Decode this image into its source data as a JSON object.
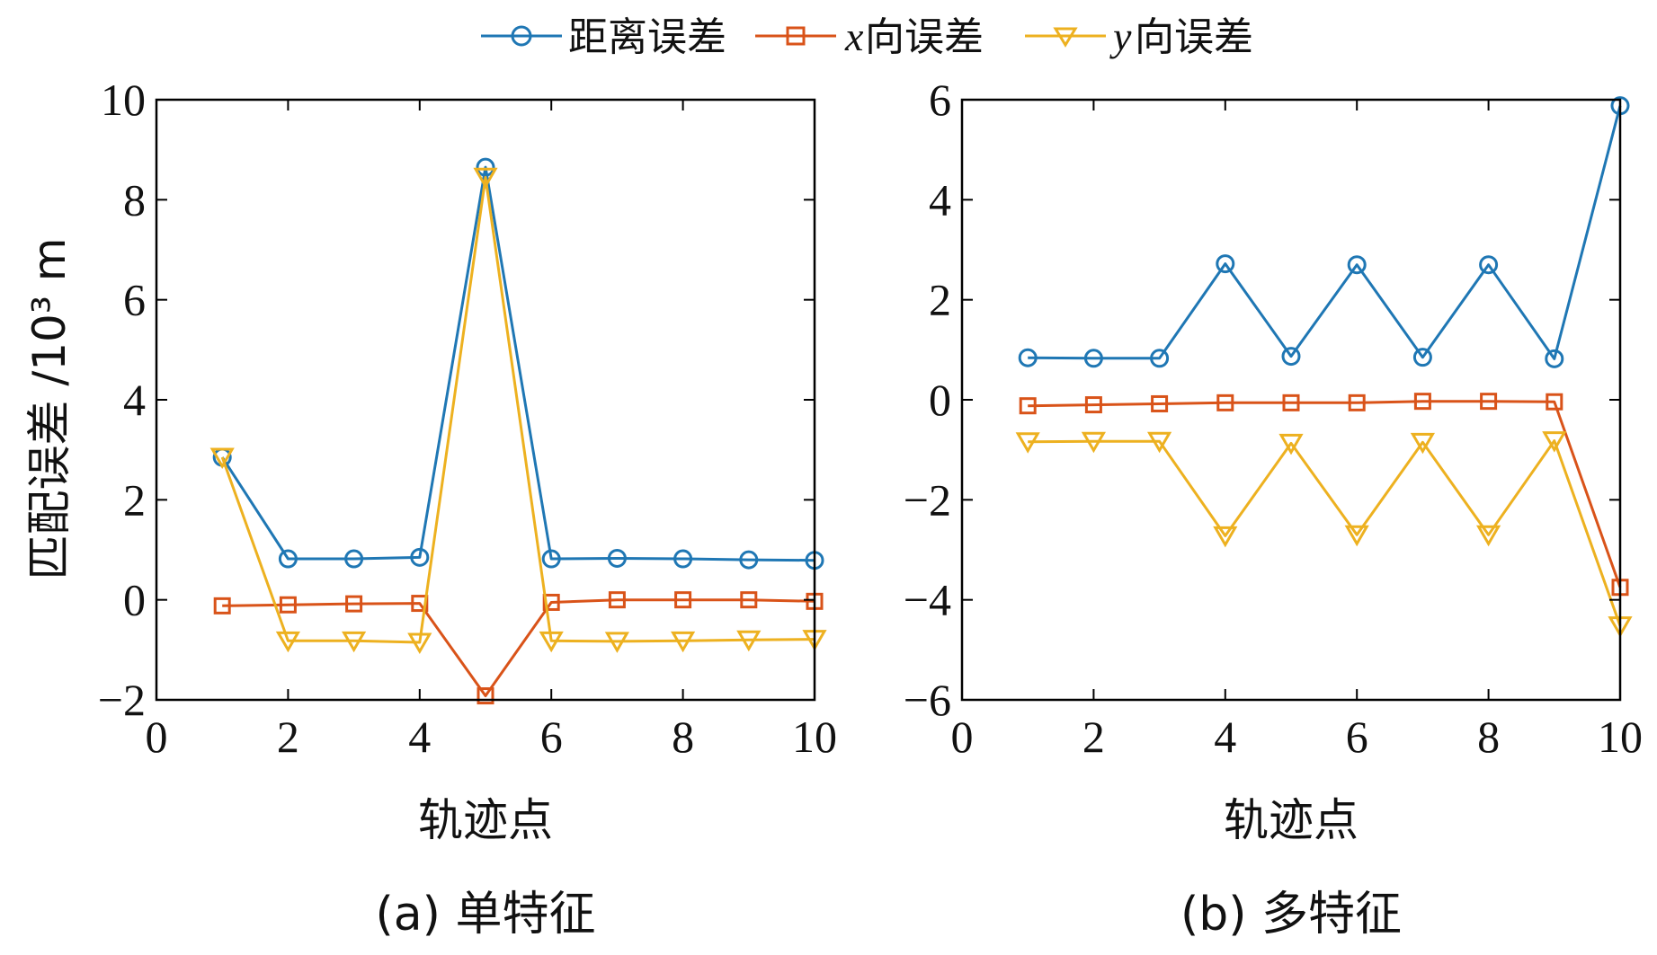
{
  "legend": {
    "items": [
      {
        "var": "",
        "label": "距离误差",
        "color": "#1f77b4",
        "marker": "circle"
      },
      {
        "var": "x",
        "label": "向误差",
        "color": "#d95319",
        "marker": "square"
      },
      {
        "var": "y",
        "label": "向误差",
        "color": "#edb120",
        "marker": "triangle-down"
      }
    ]
  },
  "shared_ylabel": "匹配误差 /10³ m",
  "chart_data": [
    {
      "type": "line",
      "caption": "(a) 单特征",
      "xlabel": "轨迹点",
      "ylabel": "匹配误差 /10³ m",
      "xlim": [
        0,
        10
      ],
      "ylim": [
        -2,
        10
      ],
      "xticks": [
        0,
        2,
        4,
        6,
        8,
        10
      ],
      "yticks": [
        -2,
        0,
        2,
        4,
        6,
        8,
        10
      ],
      "ytick_labels": [
        "−2",
        "0",
        "2",
        "4",
        "6",
        "8",
        "10"
      ],
      "x": [
        1,
        2,
        3,
        4,
        5,
        6,
        7,
        8,
        9,
        10
      ],
      "series": [
        {
          "name": "距离误差",
          "color": "#1f77b4",
          "marker": "circle",
          "values": [
            2.85,
            0.82,
            0.82,
            0.85,
            8.65,
            0.82,
            0.83,
            0.82,
            0.8,
            0.79
          ]
        },
        {
          "name": "x向误差",
          "color": "#d95319",
          "marker": "square",
          "values": [
            -0.12,
            -0.1,
            -0.08,
            -0.07,
            -1.92,
            -0.05,
            0.0,
            0.0,
            0.0,
            -0.03
          ]
        },
        {
          "name": "y向误差",
          "color": "#edb120",
          "marker": "triangle-down",
          "values": [
            2.85,
            -0.82,
            -0.82,
            -0.85,
            8.45,
            -0.82,
            -0.83,
            -0.82,
            -0.8,
            -0.79
          ]
        }
      ]
    },
    {
      "type": "line",
      "caption": "(b) 多特征",
      "xlabel": "轨迹点",
      "ylabel": "",
      "xlim": [
        0,
        10
      ],
      "ylim": [
        -6,
        6
      ],
      "xticks": [
        0,
        2,
        4,
        6,
        8,
        10
      ],
      "yticks": [
        -6,
        -4,
        -2,
        0,
        2,
        4,
        6
      ],
      "ytick_labels": [
        "−6",
        "−4",
        "−2",
        "0",
        "2",
        "4",
        "6"
      ],
      "x": [
        1,
        2,
        3,
        4,
        5,
        6,
        7,
        8,
        9,
        10
      ],
      "series": [
        {
          "name": "距离误差",
          "color": "#1f77b4",
          "marker": "circle",
          "values": [
            0.84,
            0.83,
            0.83,
            2.72,
            0.87,
            2.7,
            0.85,
            2.7,
            0.82,
            5.88
          ]
        },
        {
          "name": "x向误差",
          "color": "#d95319",
          "marker": "square",
          "values": [
            -0.12,
            -0.1,
            -0.08,
            -0.06,
            -0.06,
            -0.06,
            -0.03,
            -0.03,
            -0.04,
            -3.75
          ]
        },
        {
          "name": "y向误差",
          "color": "#edb120",
          "marker": "triangle-down",
          "values": [
            -0.84,
            -0.83,
            -0.83,
            -2.72,
            -0.87,
            -2.7,
            -0.85,
            -2.7,
            -0.82,
            -4.52
          ]
        }
      ]
    }
  ]
}
